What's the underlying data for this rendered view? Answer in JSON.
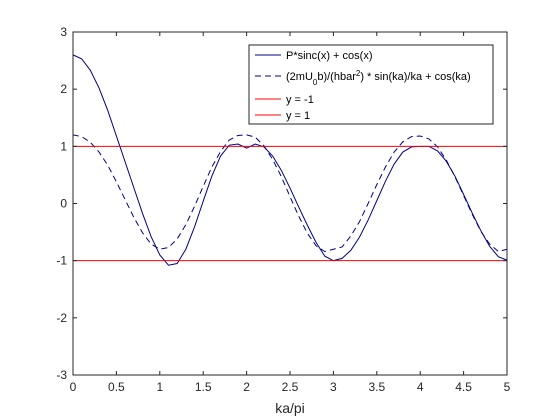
{
  "chart_data": {
    "type": "line",
    "title": "",
    "xlabel": "ka/pi",
    "ylabel": "",
    "xlim": [
      0,
      5
    ],
    "ylim": [
      -3,
      3
    ],
    "xticks": [
      "0",
      "0.5",
      "1",
      "1.5",
      "2",
      "2.5",
      "3",
      "3.5",
      "4",
      "4.5",
      "5"
    ],
    "yticks": [
      "-3",
      "-2",
      "-1",
      "0",
      "1",
      "2",
      "3"
    ],
    "grid": false,
    "legend_position": "top-right",
    "series": [
      {
        "name": "P*sinc(x) + cos(x)",
        "color": "#00008B",
        "style": "solid",
        "x": [
          0,
          0.1,
          0.2,
          0.3,
          0.4,
          0.5,
          0.6,
          0.7,
          0.8,
          0.9,
          1.0,
          1.1,
          1.2,
          1.3,
          1.4,
          1.5,
          1.6,
          1.7,
          1.8,
          1.9,
          2.0,
          2.1,
          2.2,
          2.3,
          2.4,
          2.5,
          2.6,
          2.7,
          2.8,
          2.9,
          3.0,
          3.1,
          3.2,
          3.3,
          3.4,
          3.5,
          3.6,
          3.7,
          3.8,
          3.9,
          4.0,
          4.1,
          4.2,
          4.3,
          4.4,
          4.5,
          4.6,
          4.7,
          4.8,
          4.9,
          5.0
        ],
        "y": [
          2.6,
          2.53,
          2.33,
          2.02,
          1.63,
          1.18,
          0.73,
          0.28,
          -0.17,
          -0.58,
          -0.9,
          -1.08,
          -1.05,
          -0.8,
          -0.41,
          0.04,
          0.48,
          0.83,
          1.02,
          1.04,
          0.97,
          1.04,
          0.99,
          0.83,
          0.58,
          0.27,
          -0.06,
          -0.38,
          -0.68,
          -0.92,
          -1.0,
          -0.96,
          -0.82,
          -0.59,
          -0.29,
          0.05,
          0.39,
          0.69,
          0.9,
          0.99,
          1.0,
          1.0,
          0.92,
          0.74,
          0.48,
          0.16,
          -0.17,
          -0.48,
          -0.75,
          -0.93,
          -0.99
        ]
      },
      {
        "name": "(2mU0b)/(hbar2) * sin(ka)/ka + cos(ka)",
        "color": "#00008B",
        "style": "dashed",
        "x": [
          0,
          0.1,
          0.2,
          0.3,
          0.4,
          0.5,
          0.6,
          0.7,
          0.8,
          0.9,
          1.0,
          1.1,
          1.2,
          1.3,
          1.4,
          1.5,
          1.6,
          1.7,
          1.8,
          1.9,
          2.0,
          2.1,
          2.2,
          2.3,
          2.4,
          2.5,
          2.6,
          2.7,
          2.8,
          2.9,
          3.0,
          3.1,
          3.2,
          3.3,
          3.4,
          3.5,
          3.6,
          3.7,
          3.8,
          3.9,
          4.0,
          4.1,
          4.2,
          4.3,
          4.4,
          4.5,
          4.6,
          4.7,
          4.8,
          4.9,
          5.0
        ],
        "y": [
          1.2,
          1.17,
          1.07,
          0.9,
          0.67,
          0.38,
          0.07,
          -0.24,
          -0.51,
          -0.71,
          -0.8,
          -0.77,
          -0.62,
          -0.37,
          -0.05,
          0.3,
          0.64,
          0.91,
          1.11,
          1.19,
          1.2,
          1.16,
          1.01,
          0.77,
          0.47,
          0.12,
          -0.22,
          -0.52,
          -0.74,
          -0.84,
          -0.8,
          -0.76,
          -0.57,
          -0.32,
          0.0,
          0.33,
          0.64,
          0.9,
          1.08,
          1.17,
          1.18,
          1.13,
          0.99,
          0.76,
          0.47,
          0.14,
          -0.19,
          -0.49,
          -0.71,
          -0.84,
          -0.8
        ]
      },
      {
        "name": "y = -1",
        "color": "#FF0000",
        "style": "solid",
        "x": [
          0,
          5
        ],
        "y": [
          -1,
          -1
        ]
      },
      {
        "name": "y = 1",
        "color": "#FF0000",
        "style": "solid",
        "x": [
          0,
          5
        ],
        "y": [
          1,
          1
        ]
      }
    ]
  }
}
